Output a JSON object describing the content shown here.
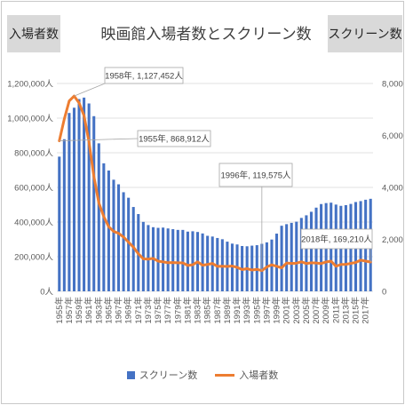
{
  "header": {
    "left_axis_title": "入場者数",
    "right_axis_title": "スクリーン数",
    "title": "映画館入場者数とスクリーン数"
  },
  "colors": {
    "bars": "#4472c4",
    "line": "#ed7d31",
    "grid": "#d9d9d9",
    "text": "#595959"
  },
  "legend": {
    "bars_label": "スクリーン数",
    "line_label": "入場者数"
  },
  "chart_data": {
    "type": "bar+line",
    "title": "映画館入場者数とスクリーン数",
    "categories": [
      "1955年",
      "1956年",
      "1957年",
      "1958年",
      "1959年",
      "1960年",
      "1961年",
      "1962年",
      "1963年",
      "1964年",
      "1965年",
      "1966年",
      "1967年",
      "1968年",
      "1969年",
      "1970年",
      "1971年",
      "1972年",
      "1973年",
      "1974年",
      "1975年",
      "1976年",
      "1977年",
      "1978年",
      "1979年",
      "1980年",
      "1981年",
      "1982年",
      "1983年",
      "1984年",
      "1985年",
      "1986年",
      "1987年",
      "1988年",
      "1989年",
      "1990年",
      "1991年",
      "1992年",
      "1993年",
      "1994年",
      "1995年",
      "1996年",
      "1997年",
      "1998年",
      "1999年",
      "2000年",
      "2001年",
      "2002年",
      "2003年",
      "2004年",
      "2005年",
      "2006年",
      "2007年",
      "2008年",
      "2009年",
      "2010年",
      "2011年",
      "2012年",
      "2013年",
      "2014年",
      "2015年",
      "2016年",
      "2017年",
      "2018年"
    ],
    "x_tick_labels": [
      "1955年",
      "1957年",
      "1959年",
      "1961年",
      "1963年",
      "1965年",
      "1967年",
      "1969年",
      "1971年",
      "1973年",
      "1975年",
      "1977年",
      "1979年",
      "1981年",
      "1983年",
      "1985年",
      "1987年",
      "1989年",
      "1991年",
      "1993年",
      "1995年",
      "1997年",
      "1999年",
      "2001年",
      "2003年",
      "2005年",
      "2007年",
      "2009年",
      "2011年",
      "2013年",
      "2015年",
      "2017年"
    ],
    "left_axis": {
      "min": 0,
      "max": 1200000,
      "ticks": [
        "0人",
        "200,000人",
        "400,000人",
        "600,000人",
        "800,000人",
        "1,000,000人",
        "1,200,000人"
      ]
    },
    "right_axis": {
      "min": 0,
      "max": 8000,
      "ticks": [
        "0",
        "2,000",
        "4,000",
        "6,000",
        "8,000"
      ]
    },
    "series": [
      {
        "name": "スクリーン数",
        "type": "bar",
        "axis": "right",
        "values": [
          5184,
          5856,
          6865,
          7067,
          7400,
          7457,
          7231,
          6742,
          5696,
          4927,
          4649,
          4296,
          4119,
          3814,
          3602,
          3246,
          2974,
          2673,
          2551,
          2468,
          2443,
          2453,
          2420,
          2392,
          2364,
          2364,
          2298,
          2311,
          2284,
          2227,
          2137,
          2109,
          2053,
          2005,
          1912,
          1836,
          1804,
          1744,
          1734,
          1758,
          1776,
          1828,
          1884,
          1993,
          2221,
          2524,
          2585,
          2635,
          2681,
          2825,
          2926,
          3062,
          3221,
          3359,
          3396,
          3412,
          3339,
          3290,
          3318,
          3364,
          3437,
          3472,
          3525,
          3561
        ]
      },
      {
        "name": "入場者数",
        "type": "line",
        "axis": "left",
        "values": [
          868912,
          993875,
          1098882,
          1127452,
          1088111,
          1014364,
          863430,
          662279,
          511121,
          431454,
          372676,
          345811,
          335067,
          313398,
          283980,
          254799,
          216754,
          187384,
          185738,
          190000,
          174020,
          170019,
          165152,
          166042,
          164952,
          164422,
          149450,
          153130,
          170043,
          150527,
          155130,
          160760,
          143935,
          144813,
          143573,
          146000,
          138330,
          125600,
          130720,
          122990,
          127040,
          119575,
          140720,
          153102,
          144760,
          135390,
          163280,
          160767,
          162347,
          170092,
          160453,
          164585,
          163193,
          160491,
          169297,
          174358,
          144726,
          155159,
          155888,
          161116,
          166630,
          180189,
          174483,
          169210
        ]
      }
    ],
    "annotations": [
      {
        "text": "1958年, 1,127,452人",
        "x": "1958年",
        "y": 1127452
      },
      {
        "text": "1955年, 868,912人",
        "x": "1955年",
        "y": 868912
      },
      {
        "text": "1996年, 119,575人",
        "x": "1996年",
        "y": 119575
      },
      {
        "text": "2018年, 169,210人",
        "x": "2018年",
        "y": 169210
      }
    ]
  }
}
